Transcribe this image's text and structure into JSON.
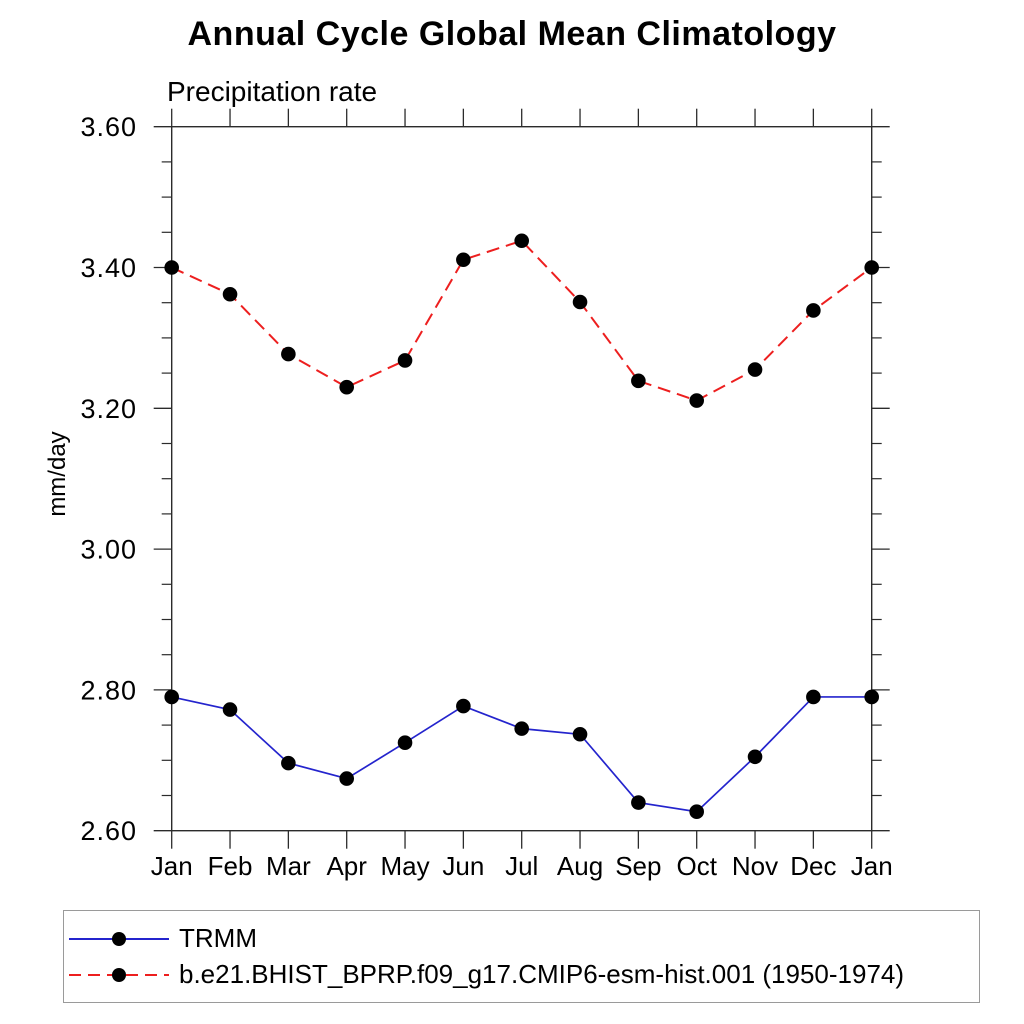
{
  "chart_data": {
    "type": "line",
    "title": "Annual Cycle Global Mean Climatology",
    "subtitle": "Precipitation rate",
    "ylabel": "mm/day",
    "xlabel": "",
    "categories": [
      "Jan",
      "Feb",
      "Mar",
      "Apr",
      "May",
      "Jun",
      "Jul",
      "Aug",
      "Sep",
      "Oct",
      "Nov",
      "Dec",
      "Jan"
    ],
    "ylim": [
      2.6,
      3.6
    ],
    "yticks_major": [
      2.6,
      2.8,
      3.0,
      3.2,
      3.4,
      3.6
    ],
    "ytick_minor_step": 0.05,
    "ytick_label_format_decimals": 2,
    "grid": false,
    "legend_position": "bottom-left",
    "axis_color": "#2b2b2b",
    "marker_color": "#000000",
    "series": [
      {
        "name": "TRMM",
        "color": "#2424cd",
        "style": "solid",
        "marker": "filled-circle",
        "values": [
          2.79,
          2.772,
          2.696,
          2.674,
          2.725,
          2.777,
          2.745,
          2.737,
          2.64,
          2.627,
          2.705,
          2.79,
          2.79
        ]
      },
      {
        "name": "b.e21.BHIST_BPRP.f09_g17.CMIP6-esm-hist.001 (1950-1974)",
        "color": "#ed1f1f",
        "style": "dashed",
        "marker": "filled-circle",
        "values": [
          3.4,
          3.362,
          3.277,
          3.23,
          3.268,
          3.411,
          3.438,
          3.351,
          3.239,
          3.211,
          3.255,
          3.339,
          3.4
        ]
      }
    ]
  }
}
